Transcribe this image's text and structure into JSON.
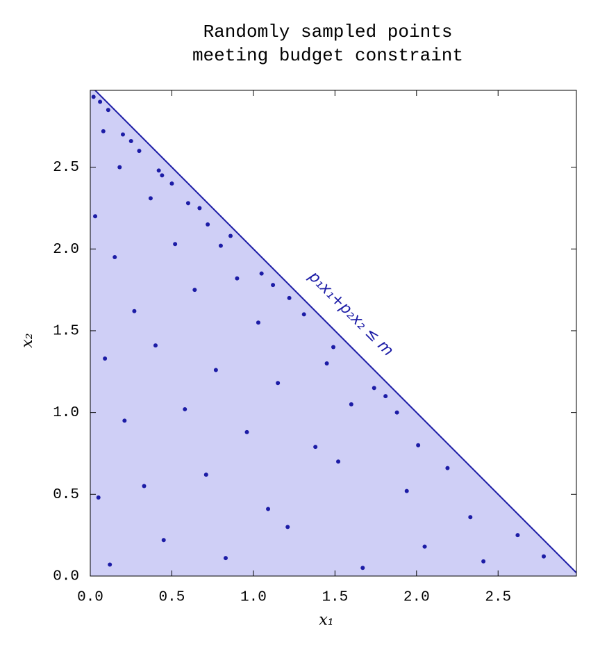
{
  "chart_data": {
    "type": "scatter",
    "title": [
      "Randomly sampled points",
      "meeting budget constraint"
    ],
    "x_label": "x₁",
    "y_label": "x₂",
    "annotation": "p₁x₁+p₂x₂  ≤  m",
    "color": "#1c1ca6",
    "region_color": "#cfcff6",
    "xlim": [
      0,
      2.98
    ],
    "ylim": [
      0,
      2.97
    ],
    "xticks": [
      {
        "value": 0,
        "label": "0.0"
      },
      0.5,
      {
        "value": 1,
        "label": "1.0"
      },
      1.5,
      {
        "value": 2,
        "label": "2.0"
      },
      2.5
    ],
    "yticks": [
      {
        "value": 0,
        "label": "0.0"
      },
      0.5,
      {
        "value": 1,
        "label": "1.0"
      },
      1.5,
      {
        "value": 2,
        "label": "2.0"
      },
      2.5
    ],
    "budget_line": {
      "x": [
        0,
        3
      ],
      "y": [
        3,
        0
      ]
    },
    "x": [
      0.12,
      0.45,
      0.83,
      1.21,
      1.67,
      2.05,
      2.41,
      2.78,
      0.05,
      0.33,
      0.71,
      1.09,
      1.52,
      1.94,
      2.33,
      2.62,
      0.21,
      0.58,
      0.96,
      1.38,
      1.81,
      2.19,
      0.09,
      0.4,
      0.77,
      1.15,
      1.6,
      2.01,
      0.27,
      0.64,
      1.03,
      1.45,
      1.88,
      0.15,
      0.52,
      0.9,
      1.31,
      1.74,
      0.03,
      0.37,
      0.8,
      1.22,
      0.18,
      0.6,
      1.05,
      1.49,
      0.08,
      0.44,
      0.86,
      0.25,
      0.67,
      1.12,
      0.11,
      0.5,
      0.3,
      0.72,
      0.06,
      0.42,
      0.2,
      0.02
    ],
    "y": [
      0.07,
      0.22,
      0.11,
      0.3,
      0.05,
      0.18,
      0.09,
      0.12,
      0.48,
      0.55,
      0.62,
      0.41,
      0.7,
      0.52,
      0.36,
      0.25,
      0.95,
      1.02,
      0.88,
      0.79,
      1.1,
      0.66,
      1.33,
      1.41,
      1.26,
      1.18,
      1.05,
      0.8,
      1.62,
      1.75,
      1.55,
      1.3,
      1.0,
      1.95,
      2.03,
      1.82,
      1.6,
      1.15,
      2.2,
      2.31,
      2.02,
      1.7,
      2.5,
      2.28,
      1.85,
      1.4,
      2.72,
      2.45,
      2.08,
      2.66,
      2.25,
      1.78,
      2.85,
      2.4,
      2.6,
      2.15,
      2.9,
      2.48,
      2.7,
      2.93
    ]
  }
}
